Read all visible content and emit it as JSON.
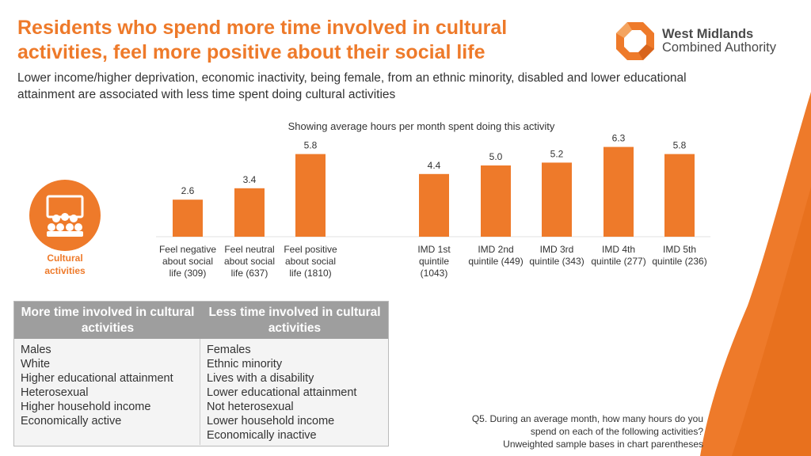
{
  "header": {
    "title": "Residents who spend more time involved in cultural activities, feel more positive about their social life",
    "subtitle": "Lower income/higher deprivation, economic inactivity, being female, from an ethnic minority, disabled and lower educational attainment are associated with less time spent doing cultural activities"
  },
  "logo": {
    "line1": "West Midlands",
    "line2": "Combined Authority"
  },
  "icon": {
    "name": "theatre-icon",
    "label": "Cultural activities"
  },
  "colors": {
    "accent": "#ee7a2a",
    "table_header": "#9e9e9e"
  },
  "chart_data": {
    "type": "bar",
    "title": "Showing average hours per month spent doing this activity",
    "groups": [
      {
        "name": "social life",
        "categories": [
          [
            "Feel negative",
            "about social",
            "life (309)"
          ],
          [
            "Feel neutral",
            "about social",
            "life (637)"
          ],
          [
            "Feel positive",
            "about social",
            "life (1810)"
          ]
        ],
        "values": [
          2.6,
          3.4,
          5.8
        ],
        "labels": [
          "2.6",
          "3.4",
          "5.8"
        ]
      },
      {
        "name": "IMD quintile",
        "categories": [
          [
            "IMD 1st",
            "quintile",
            "(1043)"
          ],
          [
            "IMD 2nd",
            "quintile (449)"
          ],
          [
            "IMD 3rd",
            "quintile (343)"
          ],
          [
            "IMD 4th",
            "quintile (277)"
          ],
          [
            "IMD 5th",
            "quintile (236)"
          ]
        ],
        "values": [
          4.4,
          5.0,
          5.2,
          6.3,
          5.8
        ],
        "labels": [
          "4.4",
          "5.0",
          "5.2",
          "6.3",
          "5.8"
        ]
      }
    ],
    "ylim": [
      0,
      6.5
    ],
    "bar_color": "#ee7a2a"
  },
  "table": {
    "headers": [
      "More time involved in cultural activities",
      "Less time involved in cultural activities"
    ],
    "more": [
      "Males",
      "White",
      "Higher educational attainment",
      "Heterosexual",
      "Higher household income",
      "Economically active"
    ],
    "less": [
      "Females",
      "Ethnic minority",
      "Lives with a disability",
      "Lower educational attainment",
      "Not heterosexual",
      "Lower household income",
      "Economically inactive"
    ]
  },
  "footnote": [
    "Q5. During an average month, how many hours do you",
    "spend on each of the following activities?",
    "Unweighted sample bases in chart parentheses"
  ]
}
